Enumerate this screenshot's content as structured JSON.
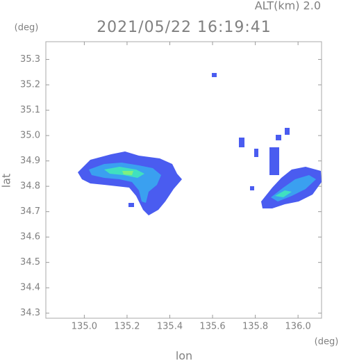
{
  "chart_data": {
    "type": "map",
    "title": "2021/05/22 16:19:41",
    "annotation": "ALT(km) 2.0",
    "xlabel": "lon",
    "ylabel": "lat",
    "xunit": "(deg)",
    "yunit": "(deg)",
    "xlim": [
      134.82,
      136.11
    ],
    "ylim": [
      34.28,
      35.37
    ],
    "xticks": [
      {
        "value": 135.0,
        "label": "135.0"
      },
      135.2,
      135.4,
      135.6,
      135.8,
      {
        "value": 136.0,
        "label": "136.0"
      }
    ],
    "yticks": [
      34.3,
      34.4,
      34.5,
      34.6,
      34.7,
      34.8,
      34.9,
      {
        "value": 35.0,
        "label": "35.0"
      },
      35.1,
      35.2,
      35.3
    ]
  }
}
